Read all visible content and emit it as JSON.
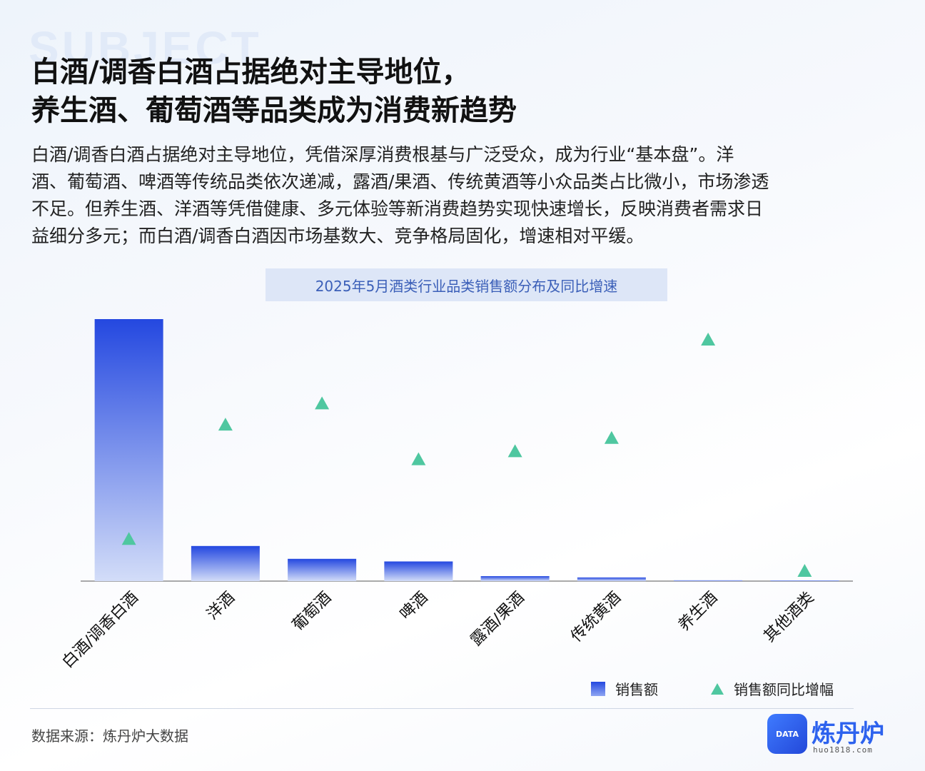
{
  "background_word": "SUBJECT",
  "title_lines": [
    "白酒/调香白酒占据绝对主导地位，",
    "养生酒、葡萄酒等品类成为消费新趋势"
  ],
  "description_lines": [
    "白酒/调香白酒占据绝对主导地位，凭借深厚消费根基与广泛受众，成为行业“基本盘”。洋",
    "酒、葡萄酒、啤酒等传统品类依次递减，露酒/果酒、传统黄酒等小众品类占比微小，市场渗透",
    "不足。但养生酒、洋酒等凭借健康、多元体验等新消费趋势实现快速增长，反映消费者需求日",
    "益细分多元；而白酒/调香白酒因市场基数大、竞争格局固化，增速相对平缓。"
  ],
  "chart_data": {
    "type": "bar",
    "title": "2025年5月酒类行业品类销售额分布及同比增速",
    "categories": [
      "白酒/调香白酒",
      "洋酒",
      "葡萄酒",
      "啤酒",
      "露酒/果酒",
      "传统黄酒",
      "养生酒",
      "其他酒类"
    ],
    "series": [
      {
        "name": "销售额",
        "kind": "bar",
        "color": "#2448e0",
        "values": [
          100,
          13.4,
          8.5,
          7.5,
          1.9,
          1.4,
          0.3,
          0.05
        ]
      },
      {
        "name": "销售额同比增幅",
        "kind": "marker",
        "color": "#4fc7a0",
        "values": [
          17,
          60,
          68,
          47,
          50,
          55,
          92,
          5
        ]
      }
    ],
    "y_axis_shown": false,
    "grid": false,
    "legend_position": "bottom-right"
  },
  "source": "数据来源：炼丹炉大数据",
  "logo": {
    "icon_text": "DATA",
    "name": "炼丹炉",
    "url": "huo1818.com"
  }
}
